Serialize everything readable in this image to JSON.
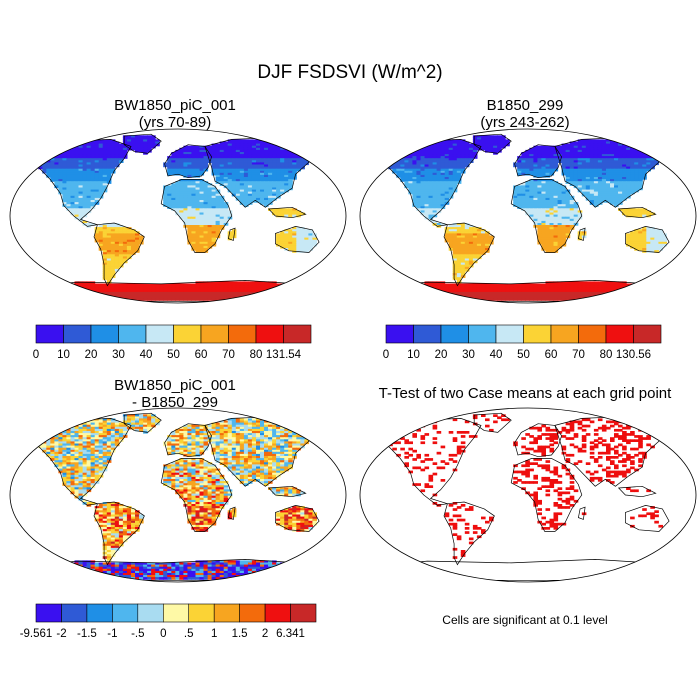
{
  "title": "DJF FSDSVI (W/m^2)",
  "note": "Cells are significant at 0.1 level",
  "colors": {
    "levels": [
      "#3a10f0",
      "#2f5ad6",
      "#1f8fe6",
      "#4fb6ee",
      "#c7e8f5",
      "#fbd335",
      "#f7a520",
      "#f36b0c",
      "#ef1010",
      "#c82828"
    ],
    "diff": [
      "#3a10f0",
      "#2f5ad6",
      "#1f8fe6",
      "#4fb6ee",
      "#a9dcf1",
      "#fef9a6",
      "#fbd335",
      "#f7a520",
      "#f36b0c",
      "#ef1010",
      "#c82828"
    ],
    "significant": "#ee0e0e",
    "land_outline": "#000000"
  },
  "chart_data": [
    {
      "type": "heatmap",
      "projection": "robinson",
      "title": "BW1850_piC_001",
      "subtitle": "(yrs 70-89)",
      "colorbar": {
        "ticks": [
          "0",
          "10",
          "20",
          "30",
          "40",
          "50",
          "60",
          "70",
          "80",
          "131.54"
        ],
        "levels": [
          0,
          10,
          20,
          30,
          40,
          50,
          60,
          70,
          80,
          131.54
        ]
      }
    },
    {
      "type": "heatmap",
      "projection": "robinson",
      "title": "B1850_299",
      "subtitle": "(yrs 243-262)",
      "colorbar": {
        "ticks": [
          "0",
          "10",
          "20",
          "30",
          "40",
          "50",
          "60",
          "70",
          "80",
          "130.56"
        ],
        "levels": [
          0,
          10,
          20,
          30,
          40,
          50,
          60,
          70,
          80,
          130.56
        ]
      }
    },
    {
      "type": "heatmap",
      "projection": "robinson",
      "title": "BW1850_piC_001",
      "subtitle": "- B1850_299",
      "colorbar": {
        "ticks": [
          "-9.561",
          "-2",
          "-1.5",
          "-1",
          "-.5",
          "0",
          ".5",
          "1",
          "1.5",
          "2",
          "6.341"
        ],
        "levels": [
          -9.561,
          -2,
          -1.5,
          -1,
          -0.5,
          0,
          0.5,
          1,
          1.5,
          2,
          6.341
        ]
      }
    },
    {
      "type": "heatmap",
      "projection": "robinson",
      "title": "T-Test of two Case means at each grid point",
      "subtitle": "",
      "significance_level": 0.1
    }
  ]
}
